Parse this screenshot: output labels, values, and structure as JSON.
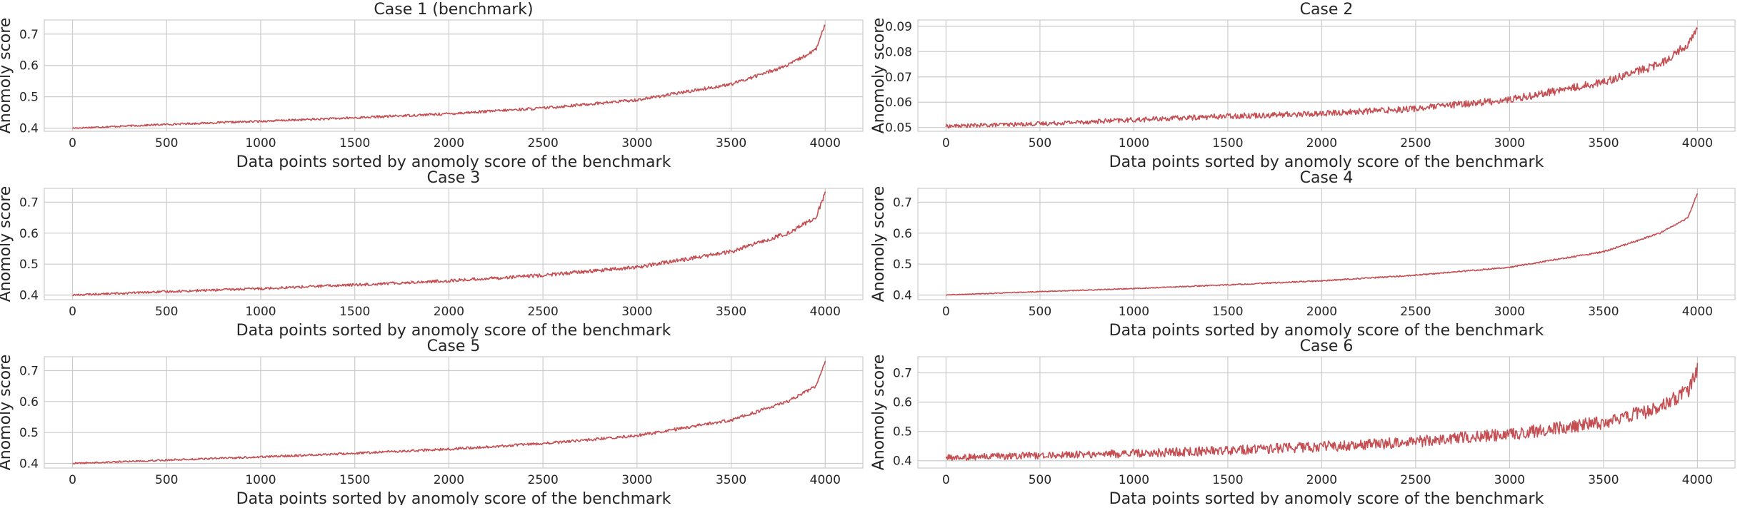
{
  "chart_data": [
    {
      "type": "line",
      "title": "Case 1 (benchmark)",
      "xlabel": "Data points sorted by anomoly score of the benchmark",
      "ylabel": "Anomoly score",
      "xlim": [
        -150,
        4200
      ],
      "ylim": [
        0.39,
        0.745
      ],
      "xticks": [
        0,
        500,
        1000,
        1500,
        2000,
        2500,
        3000,
        3500,
        4000
      ],
      "yticks": [
        0.4,
        0.5,
        0.6,
        0.7
      ],
      "ytick_labels": [
        "0.4",
        "0.5",
        "0.6",
        "0.7"
      ],
      "grid": true,
      "color": "#c44e52",
      "noise": 0.004,
      "series": [
        {
          "x": [
            0,
            500,
            1000,
            1500,
            2000,
            2500,
            3000,
            3500,
            3800,
            3950,
            4000
          ],
          "values": [
            0.4,
            0.412,
            0.422,
            0.433,
            0.446,
            0.464,
            0.49,
            0.54,
            0.6,
            0.65,
            0.73
          ]
        }
      ]
    },
    {
      "type": "line",
      "title": "Case 2",
      "xlabel": "Data points sorted by anomoly score of the benchmark",
      "ylabel": "Anomoly score",
      "xlim": [
        -150,
        4200
      ],
      "ylim": [
        0.0485,
        0.0925
      ],
      "xticks": [
        0,
        500,
        1000,
        1500,
        2000,
        2500,
        3000,
        3500,
        4000
      ],
      "yticks": [
        0.05,
        0.06,
        0.07,
        0.08,
        0.09
      ],
      "ytick_labels": [
        "0.05",
        "0.06",
        "0.07",
        "0.08",
        "0.09"
      ],
      "grid": true,
      "color": "#c44e52",
      "noise": 0.0012,
      "series": [
        {
          "x": [
            0,
            500,
            1000,
            1500,
            2000,
            2500,
            3000,
            3500,
            3800,
            3950,
            4000
          ],
          "values": [
            0.0505,
            0.0515,
            0.053,
            0.0545,
            0.0555,
            0.0575,
            0.061,
            0.068,
            0.075,
            0.083,
            0.089
          ]
        }
      ]
    },
    {
      "type": "line",
      "title": "Case 3",
      "xlabel": "Data points sorted by anomoly score of the benchmark",
      "ylabel": "Anomoly score",
      "xlim": [
        -150,
        4200
      ],
      "ylim": [
        0.385,
        0.745
      ],
      "xticks": [
        0,
        500,
        1000,
        1500,
        2000,
        2500,
        3000,
        3500,
        4000
      ],
      "yticks": [
        0.4,
        0.5,
        0.6,
        0.7
      ],
      "ytick_labels": [
        "0.4",
        "0.5",
        "0.6",
        "0.7"
      ],
      "grid": true,
      "color": "#c44e52",
      "noise": 0.005,
      "series": [
        {
          "x": [
            0,
            500,
            1000,
            1500,
            2000,
            2500,
            3000,
            3500,
            3800,
            3950,
            4000
          ],
          "values": [
            0.4,
            0.411,
            0.421,
            0.433,
            0.446,
            0.464,
            0.49,
            0.54,
            0.6,
            0.65,
            0.73
          ]
        }
      ]
    },
    {
      "type": "line",
      "title": "Case 4",
      "xlabel": "Data points sorted by anomoly score of the benchmark",
      "ylabel": "Anomoly score",
      "xlim": [
        -150,
        4200
      ],
      "ylim": [
        0.385,
        0.745
      ],
      "xticks": [
        0,
        500,
        1000,
        1500,
        2000,
        2500,
        3000,
        3500,
        4000
      ],
      "yticks": [
        0.4,
        0.5,
        0.6,
        0.7
      ],
      "ytick_labels": [
        "0.4",
        "0.5",
        "0.6",
        "0.7"
      ],
      "grid": true,
      "color": "#c44e52",
      "noise": 0.002,
      "series": [
        {
          "x": [
            0,
            500,
            1000,
            1500,
            2000,
            2500,
            3000,
            3500,
            3800,
            3950,
            4000
          ],
          "values": [
            0.4,
            0.411,
            0.421,
            0.433,
            0.446,
            0.464,
            0.49,
            0.54,
            0.6,
            0.65,
            0.73
          ]
        }
      ]
    },
    {
      "type": "line",
      "title": "Case 5",
      "xlabel": "Data points sorted by anomoly score of the benchmark",
      "ylabel": "Anomoly score",
      "xlim": [
        -150,
        4200
      ],
      "ylim": [
        0.385,
        0.745
      ],
      "xticks": [
        0,
        500,
        1000,
        1500,
        2000,
        2500,
        3000,
        3500,
        4000
      ],
      "yticks": [
        0.4,
        0.5,
        0.6,
        0.7
      ],
      "ytick_labels": [
        "0.4",
        "0.5",
        "0.6",
        "0.7"
      ],
      "grid": true,
      "color": "#c44e52",
      "noise": 0.004,
      "series": [
        {
          "x": [
            0,
            500,
            1000,
            1500,
            2000,
            2500,
            3000,
            3500,
            3800,
            3950,
            4000
          ],
          "values": [
            0.4,
            0.411,
            0.421,
            0.433,
            0.446,
            0.464,
            0.49,
            0.54,
            0.6,
            0.65,
            0.73
          ]
        }
      ]
    },
    {
      "type": "line",
      "title": "Case 6",
      "xlabel": "Data points sorted by anomoly score of the benchmark",
      "ylabel": "Anomoly score",
      "xlim": [
        -150,
        4200
      ],
      "ylim": [
        0.375,
        0.755
      ],
      "xticks": [
        0,
        500,
        1000,
        1500,
        2000,
        2500,
        3000,
        3500,
        4000
      ],
      "yticks": [
        0.4,
        0.5,
        0.6,
        0.7
      ],
      "ytick_labels": [
        "0.4",
        "0.5",
        "0.6",
        "0.7"
      ],
      "grid": true,
      "color": "#c44e52",
      "noise": 0.018,
      "series": [
        {
          "x": [
            0,
            500,
            1000,
            1500,
            2000,
            2500,
            3000,
            3500,
            3800,
            3950,
            4000
          ],
          "values": [
            0.41,
            0.418,
            0.425,
            0.435,
            0.448,
            0.465,
            0.49,
            0.53,
            0.58,
            0.64,
            0.71
          ]
        }
      ]
    }
  ]
}
